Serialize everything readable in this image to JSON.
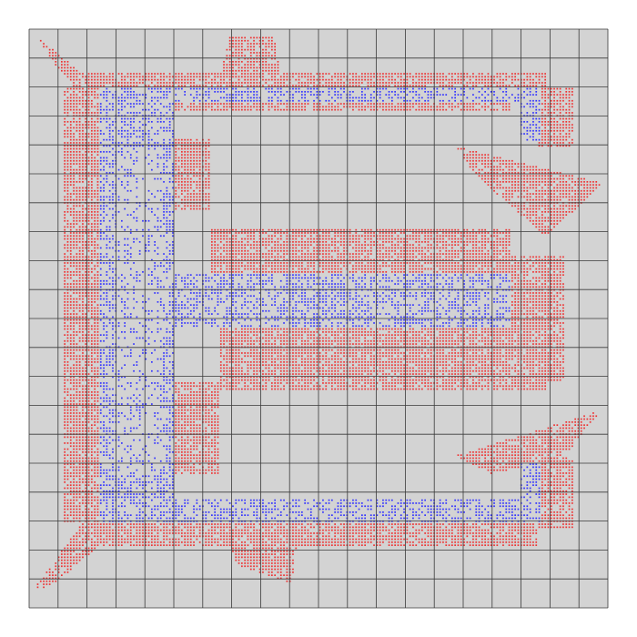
{
  "board": {
    "background_color": "#d3d3d3",
    "grid_color": "#3a3a3a",
    "grid_cells": 20
  },
  "path_cells": {
    "color": "#3333ff",
    "density": 0.55
  },
  "frontier_cells": {
    "color": "#ee3333",
    "density": 0.85
  }
}
